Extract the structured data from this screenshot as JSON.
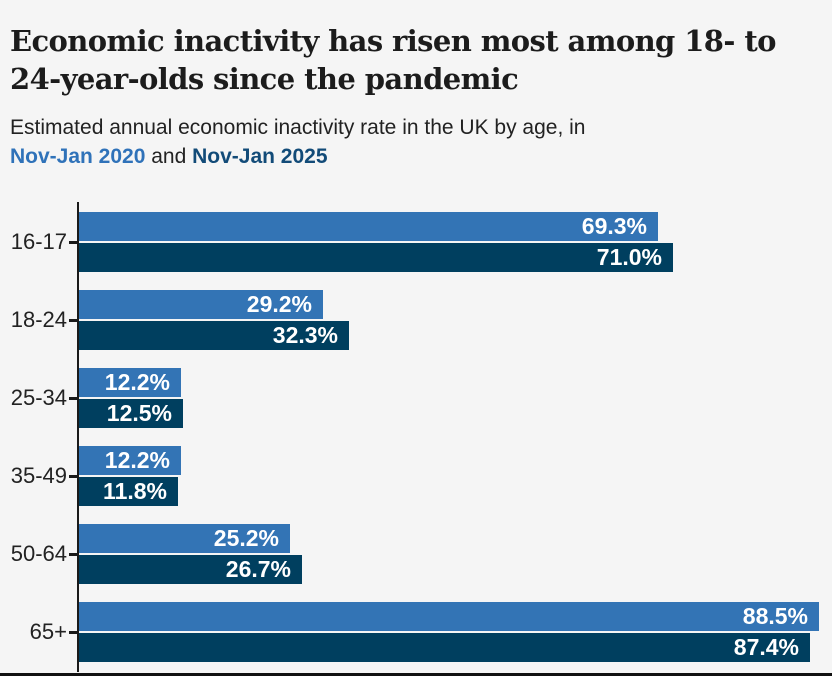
{
  "page": {
    "background_color": "#f5f5f5",
    "bottom_rule_color": "#111111"
  },
  "header": {
    "title_line1": "Economic inactivity has risen most among 18- to",
    "title_line2": "24-year-olds since the pandemic",
    "subtitle_prefix": "Estimated annual economic inactivity rate in the UK by age, in",
    "subtitle_series1": "Nov-Jan 2020",
    "subtitle_conjunction": " and ",
    "subtitle_series2": "Nov-Jan 2025",
    "series1_color": "#2f72b9",
    "series2_color": "#124b78"
  },
  "chart_data": {
    "type": "bar",
    "orientation": "horizontal",
    "title": "Economic inactivity has risen most among 18- to 24-year-olds since the pandemic",
    "subtitle": "Estimated annual economic inactivity rate in the UK by age, in Nov-Jan 2020 and Nov-Jan 2025",
    "categories": [
      "16-17",
      "18-24",
      "25-34",
      "35-49",
      "50-64",
      "65+"
    ],
    "series": [
      {
        "name": "Nov-Jan 2020",
        "color": "#3374b5",
        "values": [
          69.3,
          29.2,
          12.2,
          12.2,
          25.2,
          88.5
        ]
      },
      {
        "name": "Nov-Jan 2025",
        "color": "#003f5f",
        "values": [
          71.0,
          32.3,
          12.5,
          11.8,
          26.7,
          87.4
        ]
      }
    ],
    "value_suffix": "%",
    "value_decimals": 1,
    "xlim": [
      0,
      90.2
    ],
    "grid": false,
    "legend_position": "in-subtitle",
    "value_labels": "inside-end",
    "axis_color": "#1a1a1a",
    "label_color": "#222222",
    "value_label_color": "#ffffff"
  }
}
